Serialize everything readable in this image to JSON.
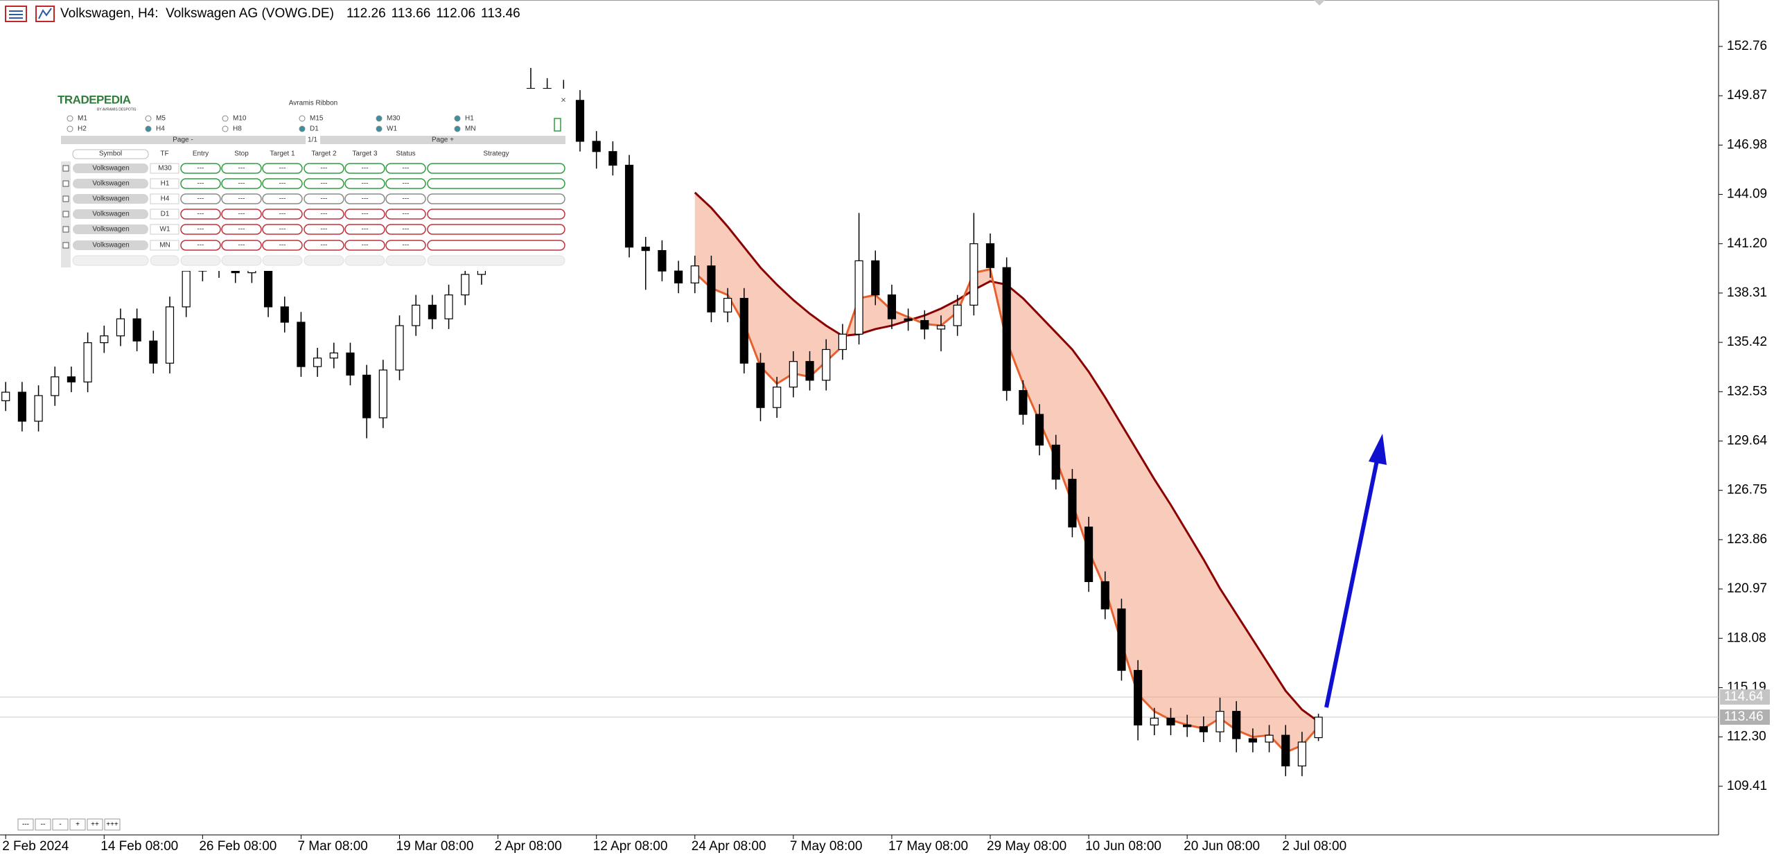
{
  "header": {
    "title": "Volkswagen, H4:  Volkswagen AG (VOWG.DE)"
  },
  "chart_data": {
    "type": "candlestick",
    "categories": [
      "2 Feb 2024",
      null,
      null,
      null,
      null,
      null,
      "14 Feb 08:00",
      null,
      null,
      null,
      null,
      null,
      "26 Feb 08:00",
      null,
      null,
      null,
      null,
      null,
      "7 Mar 08:00",
      null,
      null,
      null,
      null,
      null,
      "19 Mar 08:00",
      null,
      null,
      null,
      null,
      null,
      "2 Apr 08:00",
      null,
      null,
      null,
      null,
      null,
      "12 Apr 08:00",
      null,
      null,
      null,
      null,
      null,
      "24 Apr 08:00",
      null,
      null,
      null,
      null,
      null,
      "7 May 08:00",
      null,
      null,
      null,
      null,
      null,
      "17 May 08:00",
      null,
      null,
      null,
      null,
      null,
      "29 May 08:00",
      null,
      null,
      null,
      null,
      null,
      "10 Jun 08:00",
      null,
      null,
      null,
      null,
      null,
      "20 Jun 08:00",
      null,
      null,
      null,
      null,
      null,
      "2 Jul 08:00",
      null,
      null
    ],
    "open": [
      132.0,
      132.5,
      130.8,
      132.3,
      133.4,
      133.1,
      135.4,
      135.8,
      136.8,
      135.5,
      134.2,
      137.5,
      139.6,
      140.2,
      139.8,
      139.5,
      139.8,
      137.5,
      136.6,
      134,
      134.5,
      134.8,
      133.5,
      131,
      133.8,
      136.4,
      137.6,
      136.8,
      138.2,
      139.4,
      140.8,
      143.5,
      148.5,
      150.3,
      150.2,
      149.6,
      147.2,
      146.6,
      145.8,
      141,
      140.8,
      139.6,
      138.9,
      139.9,
      137.2,
      138,
      134.2,
      131.6,
      132.8,
      134.3,
      133.2,
      135,
      135.9,
      140.2,
      138.2,
      136.8,
      136.7,
      136.2,
      136.4,
      137.6,
      141.2,
      139.8,
      132.6,
      131.2,
      129.4,
      127.4,
      124.6,
      121.4,
      119.8,
      116.2,
      113,
      113.4,
      113,
      112.9,
      112.6,
      113.8,
      112.2,
      112,
      112.4,
      110.6,
      112.26
    ],
    "high": [
      133.1,
      133.1,
      132.9,
      134.0,
      134.0,
      136.0,
      136.4,
      137.4,
      137.4,
      136.1,
      138.1,
      140.2,
      140.8,
      140.8,
      140.4,
      140.4,
      140.4,
      138.1,
      137.2,
      135.1,
      135.4,
      135.4,
      134.1,
      134.4,
      137.0,
      138.2,
      138.2,
      138.8,
      140.0,
      141.4,
      144.1,
      149.1,
      151.5,
      150.9,
      150.8,
      150.2,
      147.8,
      147.2,
      146.4,
      141.6,
      141.4,
      140.2,
      140.5,
      140.5,
      138.6,
      138.6,
      134.8,
      133.4,
      134.9,
      134.9,
      135.6,
      136.5,
      143.0,
      140.8,
      138.8,
      137.4,
      137.3,
      137.0,
      138.2,
      143.0,
      141.8,
      140.4,
      133.2,
      131.8,
      130.0,
      128.0,
      125.2,
      122.0,
      120.4,
      116.8,
      114.0,
      114.0,
      113.6,
      113.5,
      114.6,
      114.4,
      112.8,
      113.0,
      113.0,
      112.6,
      113.66
    ],
    "low": [
      131.4,
      130.2,
      130.2,
      131.7,
      132.5,
      132.5,
      134.8,
      135.2,
      134.9,
      133.6,
      133.6,
      136.9,
      139.0,
      139.2,
      138.9,
      138.9,
      136.9,
      136.0,
      133.4,
      133.4,
      133.9,
      132.9,
      129.8,
      130.4,
      133.2,
      135.8,
      136.2,
      136.2,
      137.6,
      138.8,
      140.2,
      142.9,
      147.9,
      149.6,
      149.0,
      146.6,
      145.6,
      145.2,
      140.4,
      138.5,
      139.0,
      138.3,
      138.3,
      136.6,
      136.6,
      133.6,
      130.8,
      131.0,
      132.2,
      132.6,
      132.6,
      134.4,
      135.3,
      137.6,
      136.2,
      136.1,
      135.6,
      134.9,
      135.8,
      137.0,
      139.2,
      132.0,
      130.6,
      128.8,
      126.8,
      124.0,
      120.8,
      119.2,
      115.6,
      112.1,
      112.4,
      112.4,
      112.3,
      112.0,
      112.0,
      111.4,
      111.4,
      111.4,
      110.0,
      110.0,
      112.06
    ],
    "close": [
      132.5,
      130.8,
      132.3,
      133.4,
      133.1,
      135.4,
      135.8,
      136.8,
      135.5,
      134.2,
      137.5,
      139.6,
      140.2,
      139.8,
      139.5,
      139.8,
      137.5,
      136.6,
      134,
      134.5,
      134.8,
      133.5,
      131,
      133.8,
      136.4,
      137.6,
      136.8,
      138.2,
      139.4,
      140.8,
      143.5,
      148.5,
      150.3,
      150.2,
      149.6,
      147.2,
      146.6,
      145.8,
      141,
      140.8,
      139.6,
      138.9,
      139.9,
      137.2,
      138,
      134.2,
      131.6,
      132.8,
      134.3,
      133.2,
      135,
      135.9,
      140.2,
      138.2,
      136.8,
      136.7,
      136.2,
      136.4,
      137.6,
      141.2,
      139.8,
      132.6,
      131.2,
      129.4,
      127.4,
      124.6,
      121.4,
      119.8,
      116.2,
      113,
      113.4,
      113,
      112.9,
      112.6,
      113.8,
      112.2,
      112,
      112.4,
      110.6,
      112,
      113.46
    ],
    "up_color": "#ffffff",
    "down_color": "#000000",
    "edge_color": "#000000",
    "ribbon": {
      "fast": [
        null,
        null,
        null,
        null,
        null,
        null,
        null,
        null,
        null,
        null,
        null,
        null,
        null,
        null,
        null,
        null,
        null,
        null,
        null,
        null,
        null,
        null,
        null,
        null,
        null,
        null,
        null,
        null,
        null,
        null,
        null,
        null,
        null,
        null,
        null,
        null,
        null,
        null,
        null,
        null,
        null,
        null,
        139.5,
        138.6,
        138.2,
        136.5,
        134.0,
        133.0,
        133.6,
        133.4,
        134.3,
        135.2,
        138.0,
        138.2,
        137.3,
        136.9,
        136.5,
        136.4,
        137.2,
        139.5,
        139.7,
        135.5,
        133.0,
        130.8,
        128.6,
        126.0,
        123.2,
        121.0,
        117.8,
        114.8,
        113.8,
        113.3,
        113.0,
        112.8,
        113.4,
        112.7,
        112.3,
        112.4,
        111.4,
        111.8,
        112.9
      ],
      "slow": [
        null,
        null,
        null,
        null,
        null,
        null,
        null,
        null,
        null,
        null,
        null,
        null,
        null,
        null,
        null,
        null,
        null,
        null,
        null,
        null,
        null,
        null,
        null,
        null,
        null,
        null,
        null,
        null,
        null,
        null,
        null,
        null,
        null,
        null,
        null,
        null,
        null,
        null,
        null,
        null,
        null,
        null,
        144.2,
        143.3,
        142.2,
        141,
        139.8,
        138.8,
        137.9,
        137.1,
        136.4,
        135.8,
        135.9,
        136.2,
        136.4,
        136.7,
        137.0,
        137.4,
        137.9,
        138.5,
        139.0,
        138.8,
        138.0,
        137.0,
        136.0,
        135.0,
        133.7,
        132.2,
        130.6,
        129.0,
        127.4,
        125.9,
        124.3,
        122.7,
        121.0,
        119.5,
        118.0,
        116.5,
        115.0,
        113.9,
        113.2
      ],
      "fast_color": "#e8602c",
      "slow_color": "#8b0000",
      "fill_color": "#f2a184"
    },
    "ylim": [
      106.56,
      155.48
    ],
    "yticks": [
      152.76,
      149.87,
      146.98,
      144.09,
      {
        "value": 141.2,
        "label": "141.20"
      },
      138.31,
      135.42,
      132.53,
      129.64,
      126.75,
      123.86,
      120.97,
      118.08,
      115.19,
      {
        "value": 112.3,
        "label": "112.30"
      },
      109.41
    ],
    "price_lines": [
      114.64
    ],
    "grid": false
  },
  "panel": {
    "logo": "TRADEPEDIA",
    "logo_sub": "BY AVRAMIS DESPOTIS",
    "title": "Avramis Ribbon",
    "close": "×",
    "timeframes": [
      {
        "label": "M1",
        "checked": false
      },
      {
        "label": "M5",
        "checked": false
      },
      {
        "label": "M10",
        "checked": false
      },
      {
        "label": "M15",
        "checked": false
      },
      {
        "label": "M30",
        "checked": true
      },
      {
        "label": "H1",
        "checked": true
      },
      {
        "label": "H2",
        "checked": false
      },
      {
        "label": "H4",
        "checked": true
      },
      {
        "label": "H8",
        "checked": false
      },
      {
        "label": "D1",
        "checked": true
      },
      {
        "label": "W1",
        "checked": true
      },
      {
        "label": "MN",
        "checked": true
      }
    ],
    "page_prev": "Page -",
    "page_info": "1/1",
    "page_next": "Page +",
    "columns": [
      "Symbol",
      "TF",
      "Entry",
      "Stop",
      "Target 1",
      "Target 2",
      "Target 3",
      "Status",
      "Strategy"
    ],
    "rows": [
      {
        "symbol": "Volkswagen",
        "tf": "M30",
        "cells": [
          "---",
          "---",
          "---",
          "---",
          "---",
          "---"
        ],
        "color": "#2e9e3e"
      },
      {
        "symbol": "Volkswagen",
        "tf": "H1",
        "cells": [
          "---",
          "---",
          "---",
          "---",
          "---",
          "---"
        ],
        "color": "#2e9e3e"
      },
      {
        "symbol": "Volkswagen",
        "tf": "H4",
        "cells": [
          "---",
          "---",
          "---",
          "---",
          "---",
          "---"
        ],
        "color": "#8a8a8a"
      },
      {
        "symbol": "Volkswagen",
        "tf": "D1",
        "cells": [
          "---",
          "---",
          "---",
          "---",
          "---",
          "---"
        ],
        "color": "#c0303a"
      },
      {
        "symbol": "Volkswagen",
        "tf": "W1",
        "cells": [
          "---",
          "---",
          "---",
          "---",
          "---",
          "---"
        ],
        "color": "#c0303a"
      },
      {
        "symbol": "Volkswagen",
        "tf": "MN",
        "cells": [
          "---",
          "---",
          "---",
          "---",
          "---",
          "---"
        ],
        "color": "#c0303a"
      }
    ]
  },
  "buttons": [
    "---",
    "--",
    "-",
    "+",
    "++",
    "+++"
  ]
}
